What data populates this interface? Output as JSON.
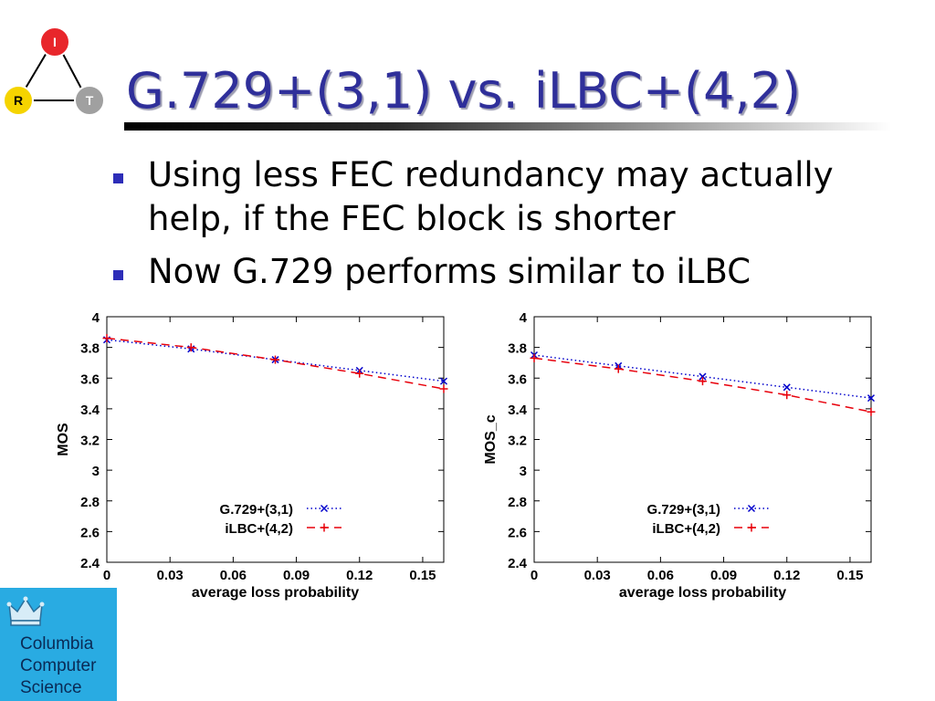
{
  "slide": {
    "title": "G.729+(3,1) vs. iLBC+(4,2)",
    "bullets": [
      "Using less FEC redundancy may actually help, if the FEC block is shorter",
      "Now G.729 performs similar to iLBC"
    ],
    "irt_logo": {
      "nodes": [
        "I",
        "R",
        "T"
      ],
      "colors": {
        "I": "#e8262b",
        "R": "#f5d400",
        "T": "#a0a0a0"
      }
    },
    "cs_logo": {
      "lines": [
        "Columbia",
        "Computer",
        "Science"
      ],
      "background": "#29abe2"
    },
    "bullet_color": "#2d2db8",
    "title_color": "#2f2f9a"
  },
  "chart_data": [
    {
      "type": "line",
      "xlabel": "average loss probability",
      "ylabel": "MOS",
      "xlim": [
        0,
        0.16
      ],
      "ylim": [
        2.4,
        4
      ],
      "xticks": [
        "0",
        "0.03",
        "0.06",
        "0.09",
        "0.12",
        "0.15"
      ],
      "yticks": [
        "2.4",
        "2.6",
        "2.8",
        "3",
        "3.2",
        "3.4",
        "3.6",
        "3.8",
        "4"
      ],
      "legend_position": "center-right",
      "series": [
        {
          "name": "G.729+(3,1)",
          "color": "#0000cc",
          "style": "dotted",
          "marker": "x",
          "x": [
            0,
            0.04,
            0.08,
            0.12,
            0.16
          ],
          "y": [
            3.85,
            3.79,
            3.72,
            3.65,
            3.58
          ]
        },
        {
          "name": "iLBC+(4,2)",
          "color": "#e8000b",
          "style": "dashed",
          "marker": "+",
          "x": [
            0,
            0.04,
            0.08,
            0.12,
            0.16
          ],
          "y": [
            3.86,
            3.8,
            3.72,
            3.63,
            3.53
          ]
        }
      ]
    },
    {
      "type": "line",
      "xlabel": "average loss probability",
      "ylabel": "MOS_c",
      "xlim": [
        0,
        0.16
      ],
      "ylim": [
        2.4,
        4
      ],
      "xticks": [
        "0",
        "0.03",
        "0.06",
        "0.09",
        "0.12",
        "0.15"
      ],
      "yticks": [
        "2.4",
        "2.6",
        "2.8",
        "3",
        "3.2",
        "3.4",
        "3.6",
        "3.8",
        "4"
      ],
      "legend_position": "center-right",
      "series": [
        {
          "name": "G.729+(3,1)",
          "color": "#0000cc",
          "style": "dotted",
          "marker": "x",
          "x": [
            0,
            0.04,
            0.08,
            0.12,
            0.16
          ],
          "y": [
            3.75,
            3.68,
            3.61,
            3.54,
            3.47
          ]
        },
        {
          "name": "iLBC+(4,2)",
          "color": "#e8000b",
          "style": "dashed",
          "marker": "+",
          "x": [
            0,
            0.04,
            0.08,
            0.12,
            0.16
          ],
          "y": [
            3.73,
            3.66,
            3.58,
            3.49,
            3.38
          ]
        }
      ]
    }
  ]
}
